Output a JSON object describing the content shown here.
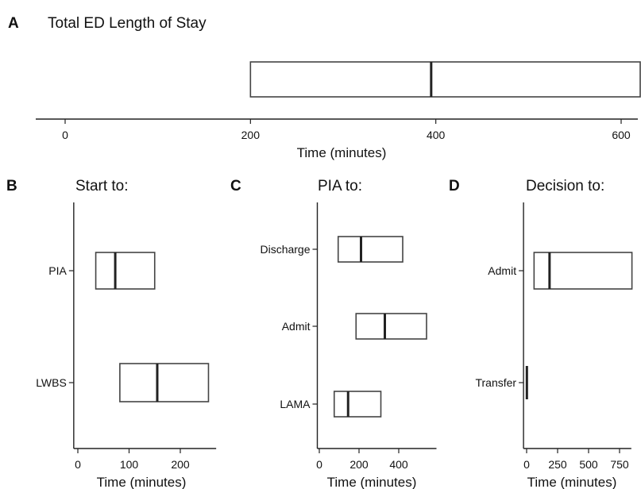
{
  "chart_data": [
    {
      "type": "box",
      "letter": "A",
      "title": "Total ED Length of Stay",
      "xlabel": "Time (minutes)",
      "xticks": [
        0,
        200,
        400,
        600
      ],
      "xlim": [
        -20,
        720
      ],
      "categories": [
        ""
      ],
      "boxes": [
        {
          "q1": 200,
          "median": 395,
          "q3": 695
        }
      ]
    },
    {
      "type": "box",
      "letter": "B",
      "title": "Start to:",
      "xlabel": "Time (minutes)",
      "xticks": [
        0,
        100,
        200
      ],
      "xlim": [
        -8,
        270
      ],
      "categories": [
        "PIA",
        "LWBS"
      ],
      "boxes": [
        {
          "q1": 35,
          "median": 73,
          "q3": 150
        },
        {
          "q1": 82,
          "median": 155,
          "q3": 255
        }
      ]
    },
    {
      "type": "box",
      "letter": "C",
      "title": "PIA to:",
      "xlabel": "Time (minutes)",
      "xticks": [
        0,
        200,
        400
      ],
      "xlim": [
        -10,
        590
      ],
      "categories": [
        "Discharge",
        "Admit",
        "LAMA"
      ],
      "boxes": [
        {
          "q1": 95,
          "median": 210,
          "q3": 420
        },
        {
          "q1": 185,
          "median": 330,
          "q3": 540
        },
        {
          "q1": 75,
          "median": 145,
          "q3": 310
        }
      ]
    },
    {
      "type": "box",
      "letter": "D",
      "title": "Decision to:",
      "xlabel": "Time (minutes)",
      "xticks": [
        0,
        250,
        500,
        750
      ],
      "xticklabels": [
        "0",
        "250",
        "500",
        "750"
      ],
      "xlim": [
        -25,
        845
      ],
      "categories": [
        "Admit",
        "Transfer"
      ],
      "boxes": [
        {
          "q1": 60,
          "median": 185,
          "q3": 850
        },
        {
          "q1": 0,
          "median": 2,
          "q3": 5
        }
      ]
    }
  ]
}
